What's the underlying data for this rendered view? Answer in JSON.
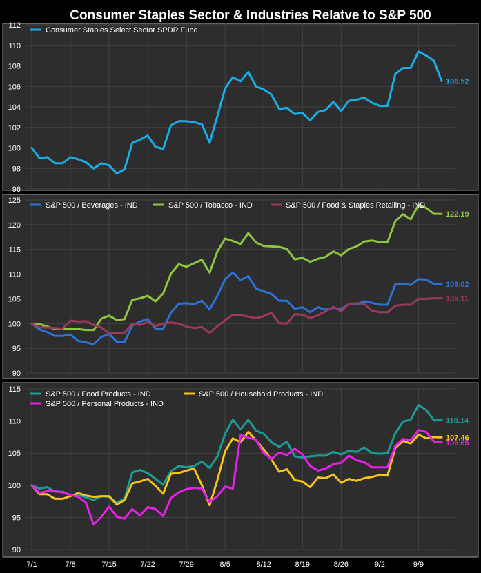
{
  "chart_data": {
    "title": "Consumer Staples Sector & Industries Relatve to S&P 500",
    "type": "line",
    "x_tick_labels": [
      "7/1",
      "7/8",
      "7/15",
      "7/22",
      "7/29",
      "8/5",
      "8/12",
      "8/19",
      "8/26",
      "9/2",
      "9/9"
    ],
    "grid": true,
    "background": "#2d2d2d",
    "panels": [
      {
        "ylim": [
          96,
          112
        ],
        "yticks": [
          96,
          98,
          100,
          102,
          104,
          106,
          108,
          110,
          112
        ],
        "legend_position": "top-left",
        "series": [
          {
            "name": "Consumer Staples Select Sector SPDR Fund",
            "color": "#1aaee8",
            "end_label": "106.52",
            "values": [
              100.0,
              99.0,
              99.1,
              98.5,
              98.5,
              99.1,
              98.9,
              98.6,
              98.0,
              98.5,
              98.3,
              97.5,
              97.9,
              100.5,
              100.8,
              101.2,
              100.1,
              99.9,
              102.2,
              102.6,
              102.6,
              102.5,
              102.3,
              100.5,
              103.1,
              105.8,
              106.9,
              106.5,
              107.4,
              106.0,
              105.7,
              105.2,
              103.8,
              103.9,
              103.3,
              103.4,
              102.7,
              103.5,
              103.7,
              104.5,
              103.6,
              104.6,
              104.7,
              104.9,
              104.4,
              104.1,
              104.1,
              107.2,
              107.8,
              107.8,
              109.4,
              109.0,
              108.5,
              106.52
            ]
          }
        ]
      },
      {
        "ylim": [
          90,
          125
        ],
        "yticks": [
          90,
          95,
          100,
          105,
          110,
          115,
          120,
          125
        ],
        "legend_position": "top-left",
        "series": [
          {
            "name": "S&P 500 / Beverages - IND",
            "color": "#2b73d6",
            "end_label": "108.02",
            "values": [
              100.0,
              98.8,
              98.3,
              97.5,
              97.5,
              97.8,
              96.5,
              96.2,
              95.8,
              97.3,
              97.9,
              96.3,
              96.3,
              99.6,
              100.4,
              100.9,
              99.0,
              99.0,
              102.2,
              104.0,
              104.1,
              103.9,
              104.6,
              102.9,
              105.6,
              109.0,
              110.3,
              108.8,
              109.6,
              107.1,
              106.5,
              106.0,
              104.6,
              104.6,
              103.0,
              103.3,
              102.3,
              103.3,
              102.8,
              103.2,
              102.9,
              103.9,
              103.9,
              104.5,
              104.2,
              103.8,
              103.8,
              107.9,
              108.1,
              107.8,
              109.0,
              108.9,
              108.0,
              108.02
            ]
          },
          {
            "name": "S&P 500 / Tobacco - IND",
            "color": "#8fc63f",
            "end_label": "122.19",
            "values": [
              100.0,
              99.9,
              99.4,
              98.9,
              98.9,
              98.9,
              98.9,
              98.7,
              98.7,
              101.0,
              101.6,
              100.7,
              100.9,
              104.8,
              105.1,
              105.6,
              104.5,
              106.1,
              110.1,
              112.0,
              111.5,
              112.2,
              112.9,
              110.3,
              114.6,
              117.2,
              116.7,
              116.1,
              118.3,
              116.4,
              115.7,
              115.6,
              115.5,
              115.1,
              113.0,
              113.3,
              112.5,
              113.1,
              113.5,
              114.6,
              113.8,
              115.1,
              115.6,
              116.6,
              116.8,
              116.5,
              116.5,
              120.7,
              122.1,
              121.1,
              124.0,
              123.4,
              122.2,
              122.19
            ]
          },
          {
            "name": "S&P 500 / Food & Staples Retailing - IND",
            "color": "#9c3a5c",
            "end_label": "105.11",
            "values": [
              100.0,
              99.2,
              99.2,
              99.1,
              99.0,
              100.6,
              100.4,
              100.5,
              99.7,
              99.2,
              98.0,
              98.1,
              98.1,
              100.0,
              99.7,
              100.3,
              99.5,
              100.0,
              100.2,
              100.0,
              99.4,
              99.1,
              99.3,
              98.1,
              99.5,
              100.7,
              101.8,
              101.7,
              101.4,
              101.1,
              101.5,
              102.2,
              100.1,
              100.0,
              101.9,
              101.8,
              101.1,
              101.7,
              102.5,
              103.4,
              102.5,
              104.0,
              104.1,
              104.0,
              102.6,
              102.3,
              102.3,
              103.6,
              103.8,
              103.8,
              105.0,
              105.0,
              105.1,
              105.11
            ]
          }
        ]
      },
      {
        "ylim": [
          90,
          115
        ],
        "yticks": [
          90,
          95,
          100,
          105,
          110,
          115
        ],
        "legend_position": "top-left",
        "series": [
          {
            "name": "S&P 500 / Food Products - IND",
            "color": "#1c9c96",
            "end_label": "110.14",
            "values": [
              100.0,
              99.5,
              99.7,
              99.0,
              99.0,
              98.5,
              98.5,
              98.1,
              97.7,
              98.3,
              98.2,
              97.3,
              97.9,
              102.0,
              102.4,
              101.9,
              101.0,
              100.1,
              102.2,
              103.0,
              102.8,
              103.0,
              103.7,
              102.7,
              104.5,
              108.0,
              110.2,
              108.7,
              110.2,
              108.5,
              108.0,
              106.7,
              106.0,
              106.8,
              104.5,
              104.3,
              104.5,
              104.6,
              104.6,
              105.2,
              104.8,
              105.4,
              105.2,
              105.9,
              105.0,
              104.9,
              105.0,
              108.1,
              109.9,
              110.2,
              112.5,
              111.7,
              110.1,
              110.14
            ]
          },
          {
            "name": "S&P 500 / Household Products - IND",
            "color": "#f5c518",
            "end_label": "107.46",
            "values": [
              100.0,
              98.6,
              98.6,
              97.9,
              97.9,
              98.3,
              98.8,
              98.4,
              98.2,
              98.3,
              98.3,
              97.0,
              97.7,
              100.3,
              100.6,
              101.0,
              99.9,
              98.7,
              101.8,
              101.9,
              102.3,
              102.6,
              100.0,
              96.9,
              100.8,
              105.3,
              107.3,
              106.7,
              108.3,
              107.0,
              105.6,
              104.0,
              102.1,
              102.5,
              100.8,
              100.6,
              99.7,
              101.2,
              101.1,
              101.7,
              100.4,
              101.0,
              100.7,
              101.1,
              101.3,
              101.6,
              101.5,
              105.8,
              106.9,
              106.5,
              107.9,
              107.3,
              107.5,
              107.46
            ]
          },
          {
            "name": "S&P 500 / Personal Products - IND",
            "color": "#e820e8",
            "end_label": "106.65",
            "values": [
              100.0,
              98.8,
              99.1,
              99.1,
              98.9,
              98.5,
              98.2,
              97.3,
              93.9,
              95.1,
              96.7,
              95.1,
              94.8,
              96.3,
              95.3,
              96.6,
              96.3,
              95.2,
              98.0,
              98.9,
              99.4,
              99.6,
              99.5,
              97.4,
              98.3,
              99.8,
              99.5,
              107.8,
              107.4,
              107.1,
              105.0,
              104.1,
              105.1,
              104.7,
              105.7,
              104.8,
              103.0,
              102.3,
              102.6,
              103.3,
              103.5,
              104.6,
              103.9,
              103.6,
              102.8,
              102.8,
              102.8,
              106.1,
              107.2,
              107.0,
              108.6,
              108.3,
              106.8,
              106.65
            ]
          }
        ]
      }
    ]
  }
}
